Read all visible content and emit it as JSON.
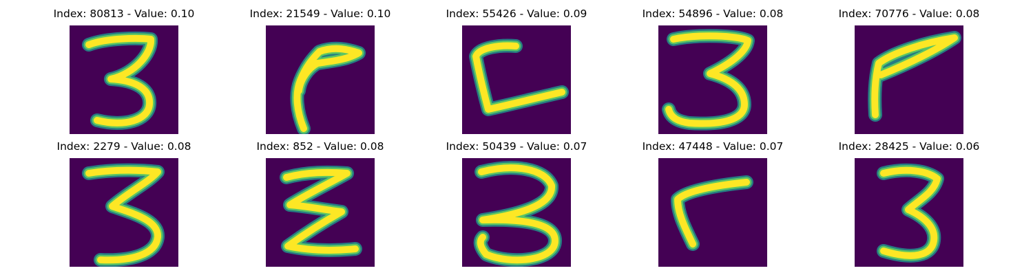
{
  "panels": [
    {
      "title": "Index: 80813 - Value: 0.10",
      "shape": "three-a"
    },
    {
      "title": "Index: 21549 - Value: 0.10",
      "shape": "hook-a"
    },
    {
      "title": "Index: 55426 - Value: 0.09",
      "shape": "bracket"
    },
    {
      "title": "Index: 54896 - Value: 0.08",
      "shape": "three-b"
    },
    {
      "title": "Index: 70776 - Value: 0.08",
      "shape": "seven-a"
    },
    {
      "title": "Index: 2279 - Value: 0.08",
      "shape": "three-c"
    },
    {
      "title": "Index: 852 - Value: 0.08",
      "shape": "zigzag"
    },
    {
      "title": "Index: 50439 - Value: 0.07",
      "shape": "three-d"
    },
    {
      "title": "Index: 47448 - Value: 0.07",
      "shape": "hook-b"
    },
    {
      "title": "Index: 28425 - Value: 0.06",
      "shape": "three-e"
    }
  ],
  "colors": {
    "background": "#440154",
    "stroke_core": "#fde725",
    "stroke_edge": "#21918c",
    "stroke_mid": "#5ec962"
  }
}
